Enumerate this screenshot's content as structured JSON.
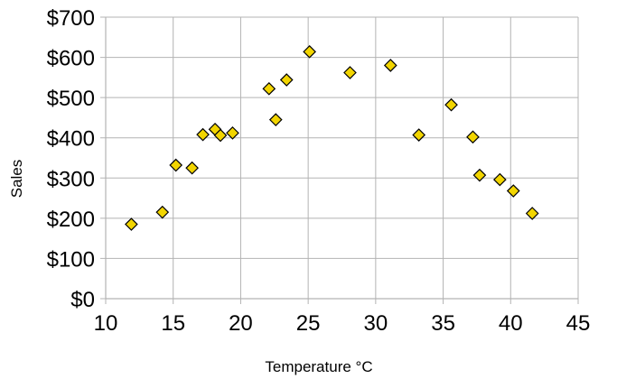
{
  "chart_data": {
    "type": "scatter",
    "xlabel": "Temperature °C",
    "ylabel": "Sales",
    "xlim": [
      10,
      45
    ],
    "ylim": [
      0,
      700
    ],
    "x_ticks": [
      10,
      15,
      20,
      25,
      30,
      35,
      40,
      45
    ],
    "y_ticks": [
      0,
      100,
      200,
      300,
      400,
      500,
      600,
      700
    ],
    "x_tick_labels": [
      "10",
      "15",
      "20",
      "25",
      "30",
      "35",
      "40",
      "45"
    ],
    "y_tick_labels": [
      "$0",
      "$100",
      "$200",
      "$300",
      "$400",
      "$500",
      "$600",
      "$700"
    ],
    "grid": true,
    "marker": "diamond",
    "marker_color": "#f2d500",
    "marker_edge_color": "#000000",
    "points": [
      {
        "x": 11.9,
        "y": 185
      },
      {
        "x": 14.2,
        "y": 215
      },
      {
        "x": 15.2,
        "y": 332
      },
      {
        "x": 16.4,
        "y": 325
      },
      {
        "x": 17.2,
        "y": 408
      },
      {
        "x": 18.1,
        "y": 421
      },
      {
        "x": 18.5,
        "y": 406
      },
      {
        "x": 19.4,
        "y": 412
      },
      {
        "x": 22.1,
        "y": 522
      },
      {
        "x": 22.6,
        "y": 445
      },
      {
        "x": 23.4,
        "y": 544
      },
      {
        "x": 25.1,
        "y": 614
      },
      {
        "x": 28.1,
        "y": 562
      },
      {
        "x": 31.1,
        "y": 580
      },
      {
        "x": 33.2,
        "y": 407
      },
      {
        "x": 35.6,
        "y": 482
      },
      {
        "x": 37.2,
        "y": 402
      },
      {
        "x": 37.7,
        "y": 307
      },
      {
        "x": 39.2,
        "y": 296
      },
      {
        "x": 40.2,
        "y": 268
      },
      {
        "x": 41.6,
        "y": 212
      }
    ]
  }
}
